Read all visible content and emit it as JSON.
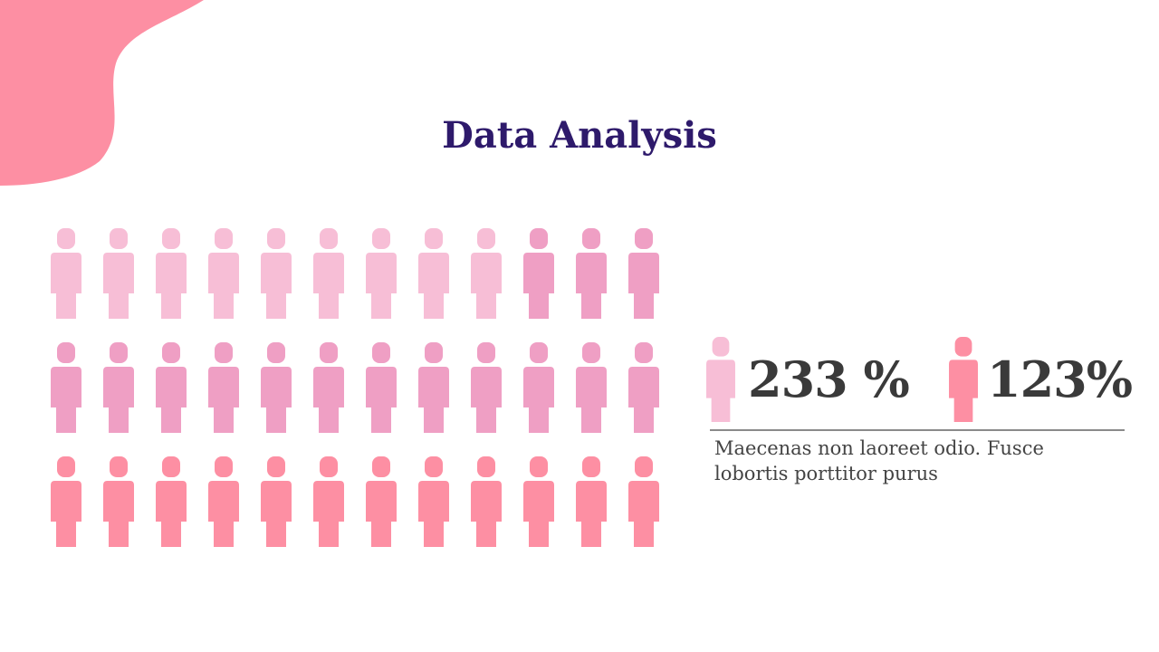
{
  "title": "Data Analysis",
  "stats": [
    {
      "value": "233 %",
      "icon": "person-icon",
      "color": "#f7bed6"
    },
    {
      "value": "123%",
      "icon": "person-icon",
      "color": "#fd8fa3"
    }
  ],
  "description": "Maecenas non laoreet odio. Fusce lobortis porttitor purus",
  "infographic": {
    "columns": 12,
    "rows": [
      {
        "light_count": 9,
        "medium_count": 3,
        "coral_count": 0
      },
      {
        "light_count": 0,
        "medium_count": 12,
        "coral_count": 0
      },
      {
        "light_count": 0,
        "medium_count": 0,
        "coral_count": 12
      }
    ],
    "colors": {
      "light": "#f7bed6",
      "medium": "#ef9fc4",
      "coral": "#fd8fa3"
    }
  },
  "decor": {
    "blob_color": "#fd8fa3",
    "title_color": "#2e1a6b"
  }
}
